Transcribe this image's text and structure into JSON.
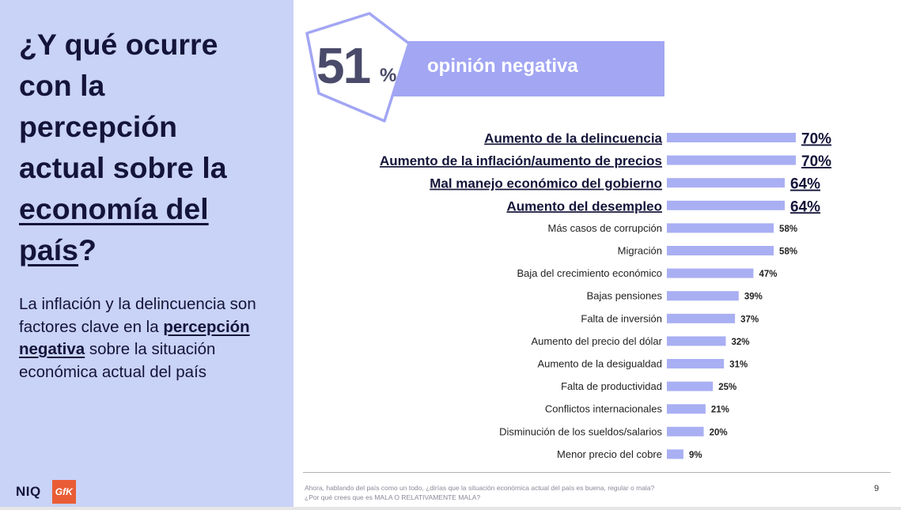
{
  "left": {
    "title_line1": "¿Y qué ocurre",
    "title_line2": "con la",
    "title_line3": "percepción",
    "title_line4": "actual sobre la",
    "title_u1": "economía del",
    "title_u2": "país",
    "title_end": "?",
    "sub_part1": "La inflación y la delincuencia son factores clave en la ",
    "sub_highlight": "percepción negativa",
    "sub_part2": " sobre la situación económica actual del país",
    "brand1": "NIQ",
    "brand2": "GfK"
  },
  "banner": {
    "number": "51",
    "pct": "%",
    "label": "opinión negativa"
  },
  "chart_data": {
    "type": "bar",
    "orientation": "horizontal",
    "categories": [
      "Aumento de la delincuencia",
      "Aumento de la inflación/aumento de precios",
      "Mal manejo económico del gobierno",
      "Aumento del desempleo",
      "Más casos de corrupción",
      "Migración",
      "Baja del crecimiento económico",
      "Bajas pensiones",
      "Falta de inversión",
      "Aumento del precio del dólar",
      "Aumento de la desigualdad",
      "Falta de productividad",
      "Conflictos internacionales",
      "Disminución de los sueldos/salarios",
      "Menor precio del cobre"
    ],
    "values": [
      70,
      70,
      64,
      64,
      58,
      58,
      47,
      39,
      37,
      32,
      31,
      25,
      21,
      20,
      9
    ],
    "value_labels": [
      "70%",
      "70%",
      "64%",
      "64%",
      "58%",
      "58%",
      "47%",
      "39%",
      "37%",
      "32%",
      "31%",
      "25%",
      "21%",
      "20%",
      "9%"
    ],
    "highlighted_count": 4,
    "bar_color": "#a9aff3",
    "xlim": [
      0,
      70
    ]
  },
  "footer": {
    "note_line1": "Ahora, hablando del país como un todo, ¿dirías que la situación económica actual del país es buena, regular  o mala?",
    "note_line2": "¿Por qué crees que es MALA O RELATIVAMENTE MALA?",
    "page": "9"
  },
  "colors": {
    "panel": "#c9d2f7",
    "banner": "#a2a6f3",
    "text_dark": "#14143a"
  }
}
